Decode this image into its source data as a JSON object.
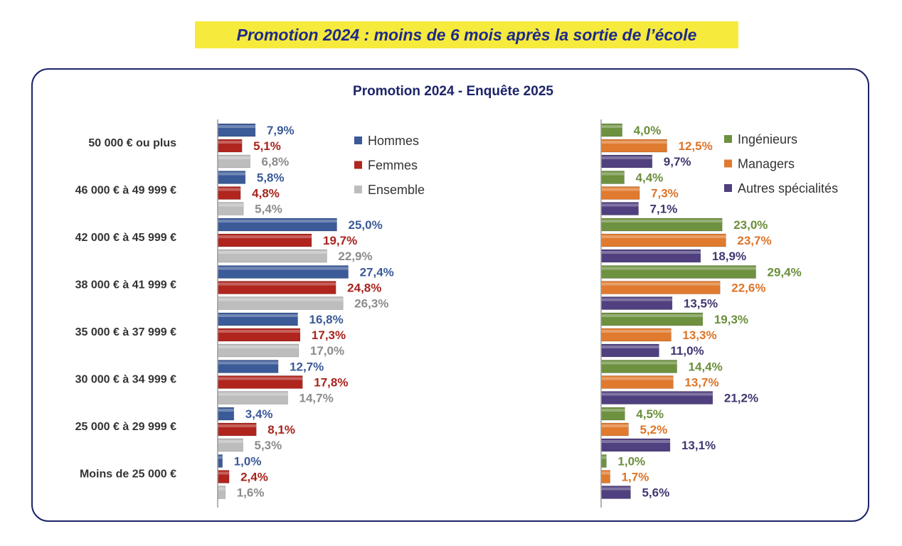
{
  "page_title": "Promotion 2024 : moins de 6 mois après la sortie de l’école",
  "chart_data": [
    {
      "type": "bar",
      "orientation": "horizontal",
      "title": "Promotion 2024 - Enquête 2025",
      "categories": [
        "50 000 € ou plus",
        "46 000 € à 49 999 €",
        "42 000 € à 45 999 €",
        "38 000 € à 41 999 €",
        "35 000 € à 37 999 €",
        "30 000 € à 34 999 €",
        "25 000 € à 29 999 €",
        "Moins de 25 000 €"
      ],
      "series": [
        {
          "name": "Hommes",
          "color": "#3b5a98",
          "label_color": "#3b5a98",
          "values": [
            7.9,
            5.8,
            25.0,
            27.4,
            16.8,
            12.7,
            3.4,
            1.0
          ]
        },
        {
          "name": "Femmes",
          "color": "#b0251e",
          "label_color": "#a8231c",
          "values": [
            5.1,
            4.8,
            19.7,
            24.8,
            17.3,
            17.8,
            8.1,
            2.4
          ]
        },
        {
          "name": "Ensemble",
          "color": "#bdbdbd",
          "label_color": "#8c8c8c",
          "values": [
            6.8,
            5.4,
            22.9,
            26.3,
            17.0,
            14.7,
            5.3,
            1.6
          ]
        }
      ],
      "labels": [
        [
          "7,9%",
          "5,8%",
          "25,0%",
          "27,4%",
          "16,8%",
          "12,7%",
          "3,4%",
          "1,0%"
        ],
        [
          "5,1%",
          "4,8%",
          "19,7%",
          "24,8%",
          "17,3%",
          "17,8%",
          "8,1%",
          "2,4%"
        ],
        [
          "6,8%",
          "5,4%",
          "22,9%",
          "26,3%",
          "17,0%",
          "14,7%",
          "5,3%",
          "1,6%"
        ]
      ],
      "legend_position": "top-right"
    },
    {
      "type": "bar",
      "orientation": "horizontal",
      "categories": [
        "50 000 € ou plus",
        "46 000 € à 49 999 €",
        "42 000 € à 45 999 €",
        "38 000 € à 41 999 €",
        "35 000 € à 37 999 €",
        "30 000 € à 34 999 €",
        "25 000 € à 29 999 €",
        "Moins de 25 000 €"
      ],
      "series": [
        {
          "name": "Ingénieurs",
          "color": "#6e9140",
          "label_color": "#6b8e3b",
          "values": [
            4.0,
            4.4,
            23.0,
            29.4,
            19.3,
            14.4,
            4.5,
            1.0
          ]
        },
        {
          "name": "Managers",
          "color": "#e07a2e",
          "label_color": "#de7427",
          "values": [
            12.5,
            7.3,
            23.7,
            22.6,
            13.3,
            13.7,
            5.2,
            1.7
          ]
        },
        {
          "name": "Autres spécialités",
          "color": "#50407f",
          "label_color": "#3f3770",
          "values": [
            9.7,
            7.1,
            18.9,
            13.5,
            11.0,
            21.2,
            13.1,
            5.6
          ]
        }
      ],
      "labels": [
        [
          "4,0%",
          "4,4%",
          "23,0%",
          "29,4%",
          "19,3%",
          "14,4%",
          "4,5%",
          "1,0%"
        ],
        [
          "12,5%",
          "7,3%",
          "23,7%",
          "22,6%",
          "13,3%",
          "13,7%",
          "5,2%",
          "1,7%"
        ],
        [
          "9,7%",
          "7,1%",
          "18,9%",
          "13,5%",
          "11,0%",
          "21,2%",
          "13,1%",
          "5,6%"
        ]
      ],
      "legend_position": "top-right"
    }
  ]
}
